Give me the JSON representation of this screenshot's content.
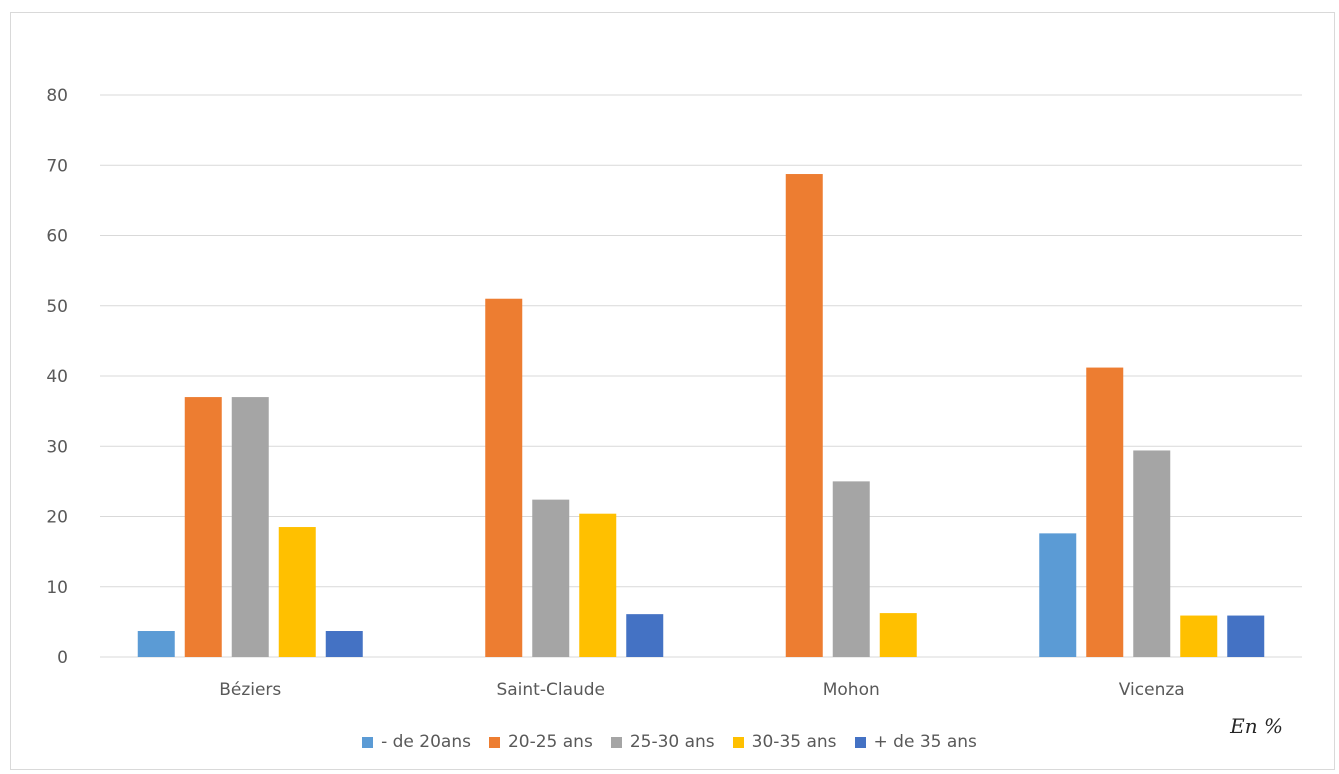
{
  "chart_data": {
    "type": "bar",
    "categories": [
      "Béziers",
      "Saint-Claude",
      "Mohon",
      "Vicenza"
    ],
    "series": [
      {
        "name": "- de 20ans",
        "color": "#5b9bd5",
        "values": [
          3.7,
          0,
          0,
          17.6
        ]
      },
      {
        "name": "20-25 ans",
        "color": "#ed7d31",
        "values": [
          37,
          51,
          68.75,
          41.2
        ]
      },
      {
        "name": "25-30 ans",
        "color": "#a5a5a5",
        "values": [
          37,
          22.4,
          25,
          29.4
        ]
      },
      {
        "name": "30-35 ans",
        "color": "#ffc000",
        "values": [
          18.5,
          20.4,
          6.25,
          5.9
        ]
      },
      {
        "name": "+ de 35 ans",
        "color": "#4472c4",
        "values": [
          3.7,
          6.1,
          0,
          5.9
        ]
      }
    ],
    "ylim": [
      0,
      80
    ],
    "yticks": [
      0,
      10,
      20,
      30,
      40,
      50,
      60,
      70,
      80
    ],
    "grid": true,
    "legend_position": "bottom",
    "unit_label": "En %"
  }
}
